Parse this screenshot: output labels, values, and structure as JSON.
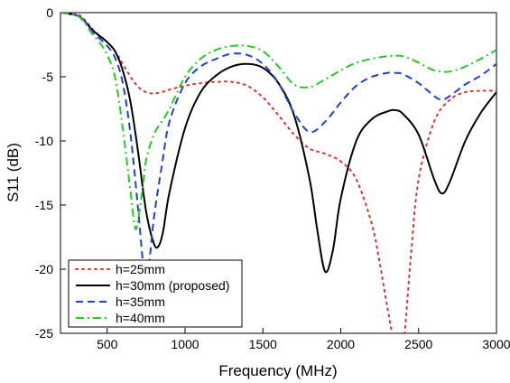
{
  "chart_data": {
    "type": "line",
    "xlabel": "Frequency (MHz)",
    "ylabel": "S11 (dB)",
    "xlim": [
      200,
      3000
    ],
    "ylim": [
      -25,
      0
    ],
    "x_ticks": [
      500,
      1000,
      1500,
      2000,
      2500,
      3000
    ],
    "y_ticks": [
      0,
      -5,
      -10,
      -15,
      -20,
      -25
    ],
    "grid": false,
    "legend_position": "bottom-left",
    "series": [
      {
        "name": "h=25mm",
        "color": "#e03030",
        "dash": "dotted",
        "x": [
          200,
          300,
          350,
          400,
          450,
          500,
          550,
          600,
          650,
          700,
          750,
          800,
          850,
          900,
          1000,
          1100,
          1200,
          1300,
          1400,
          1500,
          1600,
          1700,
          1800,
          1900,
          2000,
          2100,
          2200,
          2250,
          2300,
          2350,
          2400,
          2450,
          2500,
          2600,
          2700,
          2800,
          2900,
          3000
        ],
        "y": [
          0,
          -0.1,
          -0.5,
          -1.2,
          -1.8,
          -2.3,
          -3.0,
          -4.0,
          -5.0,
          -5.8,
          -6.2,
          -6.3,
          -6.2,
          -6.0,
          -5.7,
          -5.5,
          -5.4,
          -5.4,
          -5.7,
          -6.6,
          -8.0,
          -9.5,
          -10.6,
          -11.0,
          -11.6,
          -13.0,
          -16.5,
          -19.5,
          -23.0,
          -26.0,
          -26.0,
          -19.0,
          -13.0,
          -8.5,
          -6.8,
          -6.2,
          -6.1,
          -6.1
        ]
      },
      {
        "name": "h=30mm (proposed)",
        "color": "#000000",
        "dash": "solid",
        "x": [
          200,
          300,
          350,
          400,
          450,
          500,
          550,
          600,
          650,
          700,
          750,
          800,
          830,
          860,
          900,
          1000,
          1100,
          1200,
          1300,
          1400,
          1500,
          1600,
          1700,
          1800,
          1850,
          1900,
          1950,
          2000,
          2100,
          2200,
          2300,
          2350,
          2400,
          2500,
          2600,
          2650,
          2700,
          2800,
          2900,
          3000
        ],
        "y": [
          0,
          -0.2,
          -0.6,
          -1.3,
          -1.8,
          -2.3,
          -3.0,
          -4.5,
          -7.0,
          -11.0,
          -15.5,
          -18.0,
          -18.2,
          -17.0,
          -14.0,
          -9.0,
          -6.2,
          -4.9,
          -4.2,
          -4.0,
          -4.3,
          -5.5,
          -8.0,
          -13.0,
          -17.0,
          -20.2,
          -18.5,
          -14.5,
          -10.0,
          -8.3,
          -7.7,
          -7.6,
          -7.9,
          -9.5,
          -13.0,
          -14.1,
          -13.2,
          -10.0,
          -7.8,
          -6.2
        ]
      },
      {
        "name": "h=35mm",
        "color": "#1f3fd6",
        "dash": "dashed",
        "x": [
          200,
          300,
          350,
          400,
          450,
          500,
          550,
          600,
          650,
          700,
          730,
          750,
          770,
          800,
          850,
          900,
          1000,
          1100,
          1200,
          1300,
          1400,
          1500,
          1600,
          1700,
          1800,
          1900,
          2000,
          2100,
          2200,
          2300,
          2350,
          2400,
          2500,
          2600,
          2650,
          2700,
          2800,
          2900,
          3000
        ],
        "y": [
          0,
          -0.2,
          -0.6,
          -1.4,
          -2.0,
          -2.6,
          -3.5,
          -5.5,
          -9.5,
          -15.5,
          -19.5,
          -20.5,
          -19.5,
          -16.0,
          -12.0,
          -8.5,
          -5.5,
          -4.2,
          -3.6,
          -3.2,
          -3.3,
          -4.0,
          -5.5,
          -7.8,
          -9.3,
          -8.5,
          -7.0,
          -5.7,
          -5.0,
          -4.7,
          -4.7,
          -4.8,
          -5.5,
          -6.5,
          -6.8,
          -6.5,
          -5.6,
          -4.9,
          -4.0
        ]
      },
      {
        "name": "h=40mm",
        "color": "#22cc22",
        "dash": "dashdot",
        "x": [
          200,
          300,
          350,
          400,
          450,
          500,
          550,
          600,
          650,
          680,
          700,
          730,
          750,
          800,
          850,
          900,
          1000,
          1100,
          1200,
          1300,
          1400,
          1500,
          1600,
          1700,
          1800,
          1900,
          2000,
          2100,
          2200,
          2300,
          2400,
          2500,
          2600,
          2700,
          2800,
          2900,
          3000
        ],
        "y": [
          0,
          -0.2,
          -0.7,
          -1.6,
          -2.3,
          -3.3,
          -5.0,
          -9.0,
          -14.0,
          -16.8,
          -16.0,
          -13.5,
          -11.5,
          -9.5,
          -8.5,
          -7.5,
          -5.0,
          -3.6,
          -2.9,
          -2.6,
          -2.6,
          -3.0,
          -4.2,
          -5.6,
          -5.8,
          -5.2,
          -4.5,
          -3.9,
          -3.6,
          -3.4,
          -3.4,
          -3.9,
          -4.5,
          -4.6,
          -4.2,
          -3.6,
          -2.9
        ]
      }
    ]
  }
}
